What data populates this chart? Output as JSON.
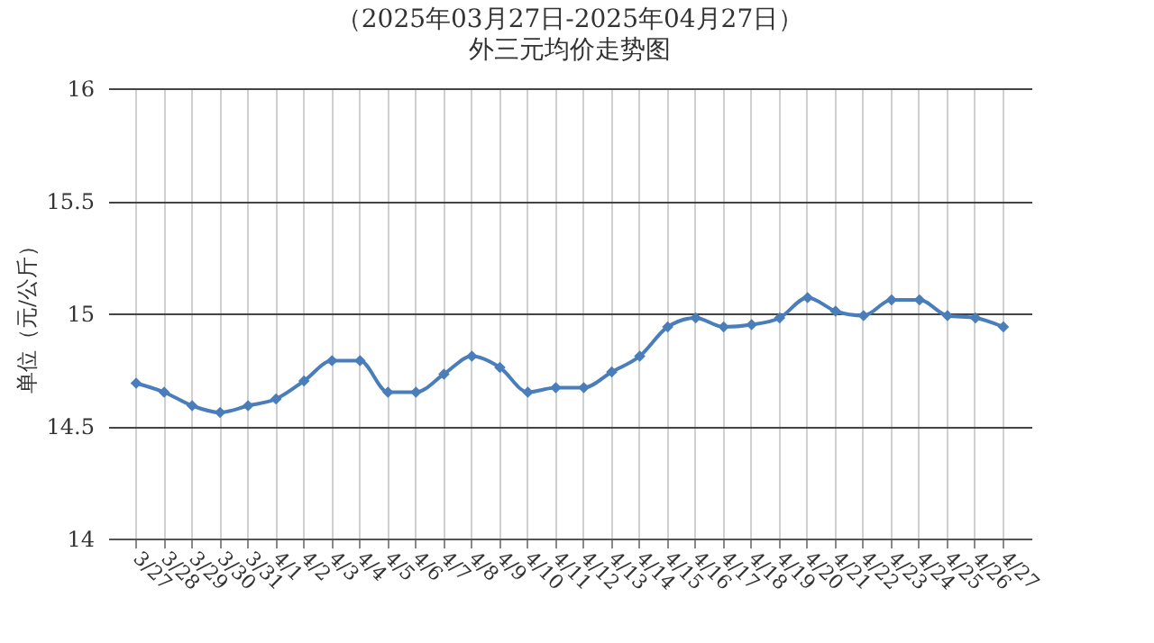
{
  "chart_data": {
    "type": "line",
    "title": "（2025年03月27日-2025年04月27日）",
    "subtitle": "外三元均价走势图",
    "ylabel": "单位（元/公斤）",
    "categories": [
      "3/27",
      "3/28",
      "3/29",
      "3/30",
      "3/31",
      "4/1",
      "4/2",
      "4/3",
      "4/4",
      "4/5",
      "4/6",
      "4/7",
      "4/8",
      "4/9",
      "4/10",
      "4/11",
      "4/12",
      "4/13",
      "4/14",
      "4/15",
      "4/16",
      "4/17",
      "4/18",
      "4/19",
      "4/20",
      "4/21",
      "4/22",
      "4/23",
      "4/24",
      "4/25",
      "4/26",
      "4/27"
    ],
    "series": [
      {
        "color": "#4a7ebb",
        "values": [
          14.69,
          14.65,
          14.59,
          14.56,
          14.59,
          14.62,
          14.7,
          14.79,
          14.79,
          14.65,
          14.65,
          14.73,
          14.81,
          14.76,
          14.65,
          14.67,
          14.67,
          14.74,
          14.81,
          14.94,
          14.98,
          14.94,
          14.95,
          14.98,
          15.07,
          15.01,
          14.99,
          15.06,
          15.06,
          14.99,
          14.98,
          14.94
        ]
      }
    ],
    "ylim": [
      14,
      16
    ],
    "yticks": [
      14,
      14.5,
      15,
      15.5,
      16
    ],
    "grid": true,
    "marker": "diamond",
    "line_style": "solid"
  }
}
